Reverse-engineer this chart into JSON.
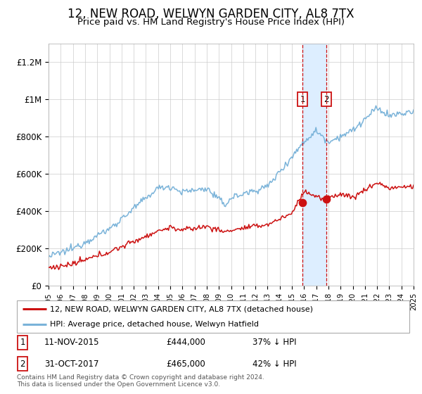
{
  "title": "12, NEW ROAD, WELWYN GARDEN CITY, AL8 7TX",
  "subtitle": "Price paid vs. HM Land Registry's House Price Index (HPI)",
  "title_fontsize": 12,
  "subtitle_fontsize": 9.5,
  "ylim": [
    0,
    1300000
  ],
  "yticks": [
    0,
    200000,
    400000,
    600000,
    800000,
    1000000,
    1200000
  ],
  "ytick_labels": [
    "£0",
    "£200K",
    "£400K",
    "£600K",
    "£800K",
    "£1M",
    "£1.2M"
  ],
  "hpi_color": "#7ab3d9",
  "price_color": "#cc1111",
  "marker_color": "#cc1111",
  "vline_color": "#cc1111",
  "shading_color": "#ddeeff",
  "grid_color": "#cccccc",
  "transaction1_date": 2015.87,
  "transaction1_price": 444000,
  "transaction2_date": 2017.83,
  "transaction2_price": 465000,
  "legend_label_price": "12, NEW ROAD, WELWYN GARDEN CITY, AL8 7TX (detached house)",
  "legend_label_hpi": "HPI: Average price, detached house, Welwyn Hatfield",
  "footer": "Contains HM Land Registry data © Crown copyright and database right 2024.\nThis data is licensed under the Open Government Licence v3.0.",
  "start_year": 1995,
  "end_year": 2025
}
